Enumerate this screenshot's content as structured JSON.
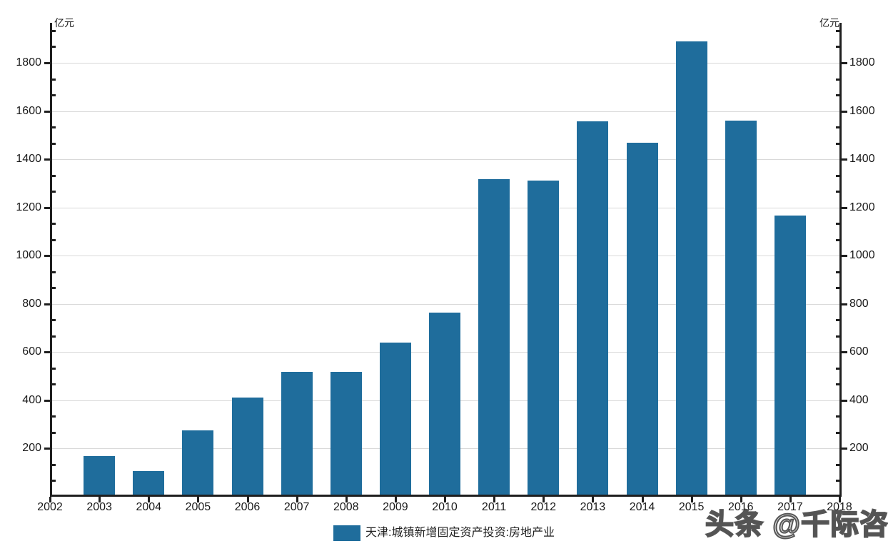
{
  "chart_data": {
    "type": "bar",
    "title": "",
    "categories": [
      "2003",
      "2004",
      "2005",
      "2006",
      "2007",
      "2008",
      "2009",
      "2010",
      "2011",
      "2012",
      "2013",
      "2014",
      "2015",
      "2016",
      "2017"
    ],
    "values": [
      160,
      98,
      267,
      402,
      508,
      508,
      630,
      755,
      1310,
      1303,
      1547,
      1460,
      1879,
      1552,
      1157
    ],
    "series_name": "天津:城镇新增固定资产投资:房地产业",
    "unit": "亿元",
    "xlabel": "",
    "ylabel": "亿元",
    "x_tick_labels": [
      "2002",
      "2003",
      "2004",
      "2005",
      "2006",
      "2007",
      "2008",
      "2009",
      "2010",
      "2011",
      "2012",
      "2013",
      "2014",
      "2015",
      "2016",
      "2017",
      "2018"
    ],
    "y_major_ticks": [
      200,
      400,
      600,
      800,
      1000,
      1200,
      1400,
      1600,
      1800
    ],
    "y_minor_step": 66.667,
    "ylim": [
      0,
      1966
    ],
    "xlim": [
      2002,
      2018
    ],
    "grid": "horizontal-major",
    "legend_position": "bottom-center",
    "bar_color": "#1F6D9C",
    "grid_color": "#D9D9D9",
    "axis_color": "#1F1F1F"
  },
  "units": {
    "left": "亿元",
    "right": "亿元"
  },
  "legend": {
    "label": "天津:城镇新增固定资产投资:房地产业"
  },
  "watermark": {
    "text": "头条 @千际咨询"
  }
}
